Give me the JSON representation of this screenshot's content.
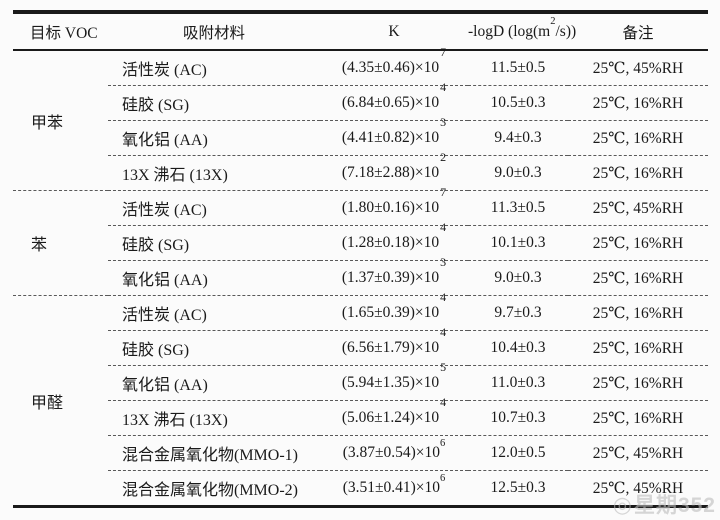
{
  "header": {
    "voc": "目标 VOC",
    "material": "吸附材料",
    "k": "K",
    "logd": {
      "pre": "-logD (log(m",
      "sup": "2",
      "post": "/s))"
    },
    "note": "备注"
  },
  "groups": [
    {
      "voc": "甲苯",
      "rows": [
        {
          "material": "活性炭 (AC)",
          "k_base": "(4.35±0.46)×10",
          "k_exp": "7",
          "k_exp_style": "high",
          "logd": "11.5±0.5",
          "note": "25℃, 45%RH"
        },
        {
          "material": "硅胶 (SG)",
          "k_base": "(6.84±0.65)×10",
          "k_exp": "4",
          "k_exp_style": "high",
          "logd": "10.5±0.3",
          "note": "25℃, 16%RH"
        },
        {
          "material": "氧化铝 (AA)",
          "k_base": "(4.41±0.82)×10",
          "k_exp": "3",
          "k_exp_style": "high",
          "logd": "9.4±0.3",
          "note": "25℃, 16%RH"
        },
        {
          "material": "13X 沸石 (13X)",
          "k_base": "(7.18±2.88)×10",
          "k_exp": "2",
          "k_exp_style": "high",
          "logd": "9.0±0.3",
          "note": "25℃, 16%RH"
        }
      ]
    },
    {
      "voc": "苯",
      "rows": [
        {
          "material": "活性炭 (AC)",
          "k_base": "(1.80±0.16)×10",
          "k_exp": "7",
          "k_exp_style": "high",
          "logd": "11.3±0.5",
          "note": "25℃, 45%RH"
        },
        {
          "material": "硅胶 (SG)",
          "k_base": "(1.28±0.18)×10",
          "k_exp": "4",
          "k_exp_style": "high",
          "logd": "10.1±0.3",
          "note": "25℃, 16%RH"
        },
        {
          "material": "氧化铝 (AA)",
          "k_base": "(1.37±0.39)×10",
          "k_exp": "3",
          "k_exp_style": "high",
          "logd": "9.0±0.3",
          "note": "25℃, 16%RH"
        }
      ]
    },
    {
      "voc": "甲醛",
      "rows": [
        {
          "material": "活性炭 (AC)",
          "k_base": "(1.65±0.39)×10",
          "k_exp": "4",
          "k_exp_style": "high",
          "logd": "9.7±0.3",
          "note": "25℃, 16%RH"
        },
        {
          "material": "硅胶 (SG)",
          "k_base": "(6.56±1.79)×10",
          "k_exp": "4",
          "k_exp_style": "high",
          "logd": "10.4±0.3",
          "note": "25℃, 16%RH"
        },
        {
          "material": "氧化铝 (AA)",
          "k_base": "(5.94±1.35)×10",
          "k_exp": "5",
          "k_exp_style": "high",
          "logd": "11.0±0.3",
          "note": "25℃, 16%RH"
        },
        {
          "material": "13X 沸石 (13X)",
          "k_base": "(5.06±1.24)×10",
          "k_exp": "4",
          "k_exp_style": "high",
          "logd": "10.7±0.3",
          "note": "25℃, 16%RH"
        },
        {
          "material": "混合金属氧化物(MMO-1)",
          "k_base": "(3.87±0.54)×10",
          "k_exp": "6",
          "k_exp_style": "inline",
          "logd": "12.0±0.5",
          "note": "25℃, 45%RH"
        },
        {
          "material": "混合金属氧化物(MMO-2)",
          "k_base": "(3.51±0.41)×10",
          "k_exp": "6",
          "k_exp_style": "inline",
          "logd": "12.5±0.3",
          "note": "25℃, 45%RH"
        }
      ]
    }
  ],
  "watermark": {
    "icon": "◎",
    "text": "星期352"
  },
  "colors": {
    "text": "#1a1a1a",
    "rule": "#1a1a1a",
    "dash": "#595959",
    "background": "#fbfbfb",
    "watermark": "#bdbdbd"
  }
}
